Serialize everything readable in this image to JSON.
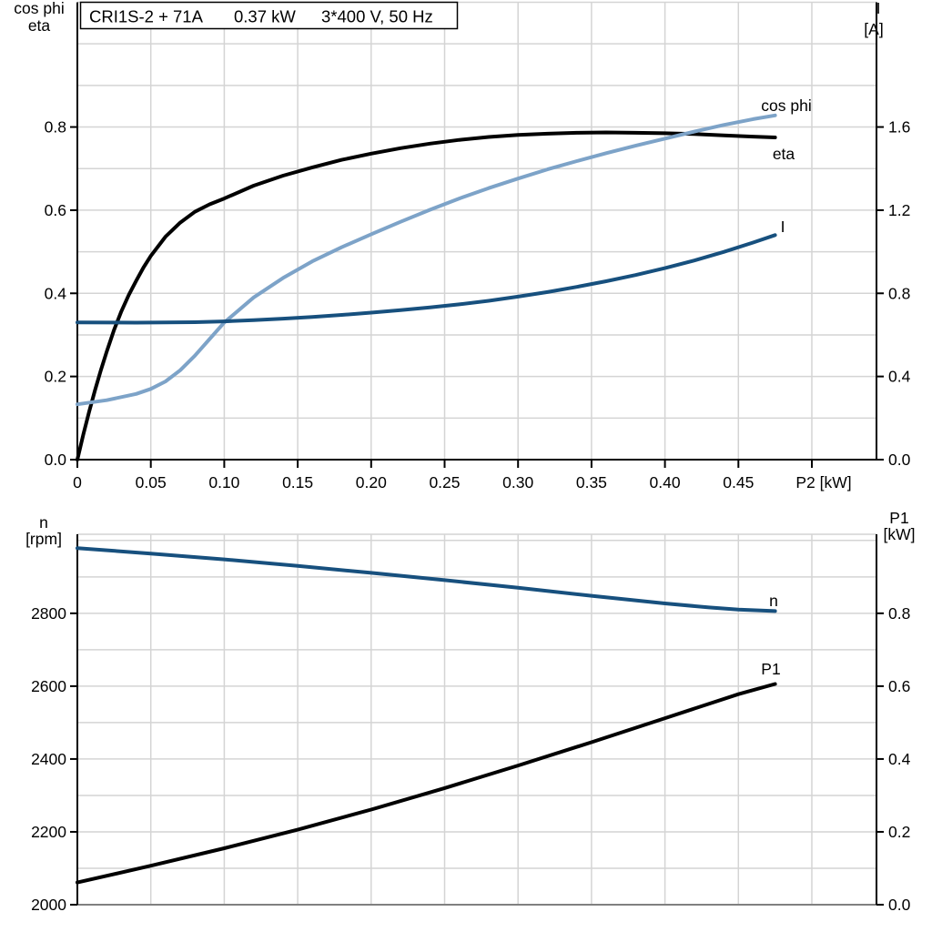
{
  "header": {
    "model": "CRI1S-2 + 71A",
    "power": "0.37 kW",
    "supply": "3*400 V, 50 Hz"
  },
  "colors": {
    "curve_black": "#000000",
    "curve_light_blue": "#7DA3C8",
    "curve_dark_blue": "#17507E",
    "grid": "#D4D4D4",
    "axis": "#000000",
    "axis_gray": "#808080",
    "background": "#FFFFFF",
    "text": "#000000"
  },
  "chart_data": [
    {
      "type": "line",
      "title": "",
      "xlabel": "P2 [kW]",
      "left_axis_label": [
        "cos phi",
        "eta"
      ],
      "right_axis_label": [
        "I",
        "[A]"
      ],
      "xlim": [
        0,
        0.544
      ],
      "left_lim": [
        0,
        1.1
      ],
      "right_lim": [
        0,
        2.2
      ],
      "grid": true,
      "x_ticks": [
        {
          "v": 0,
          "label": "0"
        },
        {
          "v": 0.05,
          "label": "0.05"
        },
        {
          "v": 0.1,
          "label": "0.10"
        },
        {
          "v": 0.15,
          "label": "0.15"
        },
        {
          "v": 0.2,
          "label": "0.20"
        },
        {
          "v": 0.25,
          "label": "0.25"
        },
        {
          "v": 0.3,
          "label": "0.30"
        },
        {
          "v": 0.35,
          "label": "0.35"
        },
        {
          "v": 0.4,
          "label": "0.40"
        },
        {
          "v": 0.45,
          "label": "0.45"
        },
        {
          "v": 0.5,
          "label": ""
        }
      ],
      "x_grid": [
        0.05,
        0.1,
        0.15,
        0.2,
        0.25,
        0.3,
        0.35,
        0.4,
        0.45,
        0.5
      ],
      "left_ticks": [
        {
          "v": 0.0,
          "label": "0.0"
        },
        {
          "v": 0.2,
          "label": "0.2"
        },
        {
          "v": 0.4,
          "label": "0.4"
        },
        {
          "v": 0.6,
          "label": "0.6"
        },
        {
          "v": 0.8,
          "label": "0.8"
        }
      ],
      "left_grid": [
        0.1,
        0.2,
        0.3,
        0.4,
        0.5,
        0.6,
        0.7,
        0.8,
        0.9,
        1.0
      ],
      "right_ticks": [
        {
          "v": 0.0,
          "label": "0.0"
        },
        {
          "v": 0.4,
          "label": "0.4"
        },
        {
          "v": 0.8,
          "label": "0.8"
        },
        {
          "v": 1.2,
          "label": "1.2"
        },
        {
          "v": 1.6,
          "label": "1.6"
        }
      ],
      "series": [
        {
          "name": "eta",
          "axis": "left",
          "color_key": "curve_black",
          "points": [
            [
              0,
              0
            ],
            [
              0.004,
              0.06
            ],
            [
              0.008,
              0.115
            ],
            [
              0.012,
              0.167
            ],
            [
              0.016,
              0.215
            ],
            [
              0.02,
              0.26
            ],
            [
              0.025,
              0.312
            ],
            [
              0.03,
              0.357
            ],
            [
              0.035,
              0.396
            ],
            [
              0.04,
              0.43
            ],
            [
              0.045,
              0.462
            ],
            [
              0.05,
              0.49
            ],
            [
              0.06,
              0.536
            ],
            [
              0.07,
              0.57
            ],
            [
              0.08,
              0.596
            ],
            [
              0.09,
              0.614
            ],
            [
              0.1,
              0.628
            ],
            [
              0.12,
              0.659
            ],
            [
              0.14,
              0.683
            ],
            [
              0.16,
              0.703
            ],
            [
              0.18,
              0.721
            ],
            [
              0.2,
              0.736
            ],
            [
              0.22,
              0.749
            ],
            [
              0.24,
              0.76
            ],
            [
              0.26,
              0.769
            ],
            [
              0.28,
              0.776
            ],
            [
              0.3,
              0.781
            ],
            [
              0.32,
              0.784
            ],
            [
              0.34,
              0.786
            ],
            [
              0.36,
              0.787
            ],
            [
              0.38,
              0.786
            ],
            [
              0.4,
              0.785
            ],
            [
              0.42,
              0.783
            ],
            [
              0.44,
              0.78
            ],
            [
              0.46,
              0.777
            ],
            [
              0.475,
              0.775
            ]
          ]
        },
        {
          "name": "cos phi",
          "axis": "left",
          "color_key": "curve_light_blue",
          "points": [
            [
              0,
              0.133
            ],
            [
              0.02,
              0.143
            ],
            [
              0.04,
              0.158
            ],
            [
              0.05,
              0.17
            ],
            [
              0.06,
              0.188
            ],
            [
              0.07,
              0.215
            ],
            [
              0.08,
              0.25
            ],
            [
              0.09,
              0.29
            ],
            [
              0.1,
              0.33
            ],
            [
              0.12,
              0.39
            ],
            [
              0.14,
              0.437
            ],
            [
              0.16,
              0.477
            ],
            [
              0.18,
              0.511
            ],
            [
              0.2,
              0.542
            ],
            [
              0.22,
              0.572
            ],
            [
              0.24,
              0.601
            ],
            [
              0.26,
              0.628
            ],
            [
              0.28,
              0.653
            ],
            [
              0.3,
              0.676
            ],
            [
              0.32,
              0.698
            ],
            [
              0.34,
              0.718
            ],
            [
              0.36,
              0.737
            ],
            [
              0.38,
              0.755
            ],
            [
              0.4,
              0.772
            ],
            [
              0.42,
              0.789
            ],
            [
              0.44,
              0.805
            ],
            [
              0.46,
              0.819
            ],
            [
              0.475,
              0.828
            ]
          ]
        },
        {
          "name": "I",
          "axis": "right",
          "color_key": "curve_dark_blue",
          "points": [
            [
              0,
              0.66
            ],
            [
              0.04,
              0.659
            ],
            [
              0.08,
              0.661
            ],
            [
              0.1,
              0.665
            ],
            [
              0.12,
              0.671
            ],
            [
              0.14,
              0.678
            ],
            [
              0.16,
              0.686
            ],
            [
              0.18,
              0.696
            ],
            [
              0.2,
              0.707
            ],
            [
              0.22,
              0.719
            ],
            [
              0.24,
              0.732
            ],
            [
              0.26,
              0.747
            ],
            [
              0.28,
              0.764
            ],
            [
              0.3,
              0.784
            ],
            [
              0.32,
              0.806
            ],
            [
              0.34,
              0.831
            ],
            [
              0.36,
              0.858
            ],
            [
              0.38,
              0.888
            ],
            [
              0.4,
              0.921
            ],
            [
              0.42,
              0.958
            ],
            [
              0.44,
              0.999
            ],
            [
              0.46,
              1.044
            ],
            [
              0.475,
              1.08
            ]
          ]
        }
      ]
    },
    {
      "type": "line",
      "title": "",
      "xlabel": "",
      "left_axis_label": [
        "n",
        "[rpm]"
      ],
      "right_axis_label": [
        "P1",
        "[kW]"
      ],
      "xlim": [
        0,
        0.544
      ],
      "left_lim": [
        2000,
        3017
      ],
      "right_lim": [
        0,
        1.017
      ],
      "grid": true,
      "x_ticks": [],
      "x_grid": [
        0.05,
        0.1,
        0.15,
        0.2,
        0.25,
        0.3,
        0.35,
        0.4,
        0.45,
        0.5
      ],
      "left_ticks": [
        {
          "v": 2000,
          "label": "2000"
        },
        {
          "v": 2200,
          "label": "2200"
        },
        {
          "v": 2400,
          "label": "2400"
        },
        {
          "v": 2600,
          "label": "2600"
        },
        {
          "v": 2800,
          "label": "2800"
        }
      ],
      "left_grid": [
        2100,
        2200,
        2300,
        2400,
        2500,
        2600,
        2700,
        2800,
        2900,
        3000
      ],
      "right_ticks": [
        {
          "v": 0.0,
          "label": "0.0"
        },
        {
          "v": 0.2,
          "label": "0.2"
        },
        {
          "v": 0.4,
          "label": "0.4"
        },
        {
          "v": 0.6,
          "label": "0.6"
        },
        {
          "v": 0.8,
          "label": "0.8"
        }
      ],
      "series": [
        {
          "name": "n",
          "axis": "left",
          "color_key": "curve_dark_blue",
          "points": [
            [
              0,
              2979
            ],
            [
              0.05,
              2964
            ],
            [
              0.1,
              2948
            ],
            [
              0.15,
              2930
            ],
            [
              0.2,
              2911
            ],
            [
              0.25,
              2891
            ],
            [
              0.3,
              2870
            ],
            [
              0.35,
              2848
            ],
            [
              0.4,
              2827
            ],
            [
              0.43,
              2816
            ],
            [
              0.45,
              2810
            ],
            [
              0.475,
              2806
            ]
          ]
        },
        {
          "name": "P1",
          "axis": "right",
          "color_key": "curve_black",
          "points": [
            [
              0,
              0.061
            ],
            [
              0.05,
              0.107
            ],
            [
              0.1,
              0.155
            ],
            [
              0.15,
              0.206
            ],
            [
              0.2,
              0.261
            ],
            [
              0.25,
              0.32
            ],
            [
              0.3,
              0.382
            ],
            [
              0.35,
              0.446
            ],
            [
              0.4,
              0.512
            ],
            [
              0.45,
              0.578
            ],
            [
              0.475,
              0.606
            ]
          ]
        }
      ]
    }
  ]
}
